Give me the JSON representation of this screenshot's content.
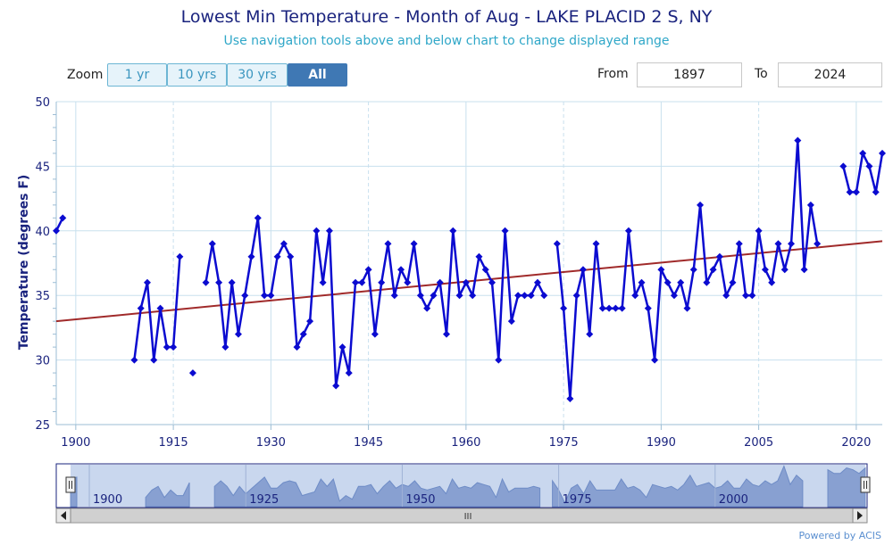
{
  "header": {
    "title": "Lowest Min Temperature - Month of Aug - LAKE PLACID 2 S, NY",
    "subtitle": "Use navigation tools above and below chart to change displayed range"
  },
  "zoom": {
    "label": "Zoom",
    "buttons": [
      "1 yr",
      "10 yrs",
      "30 yrs",
      "All"
    ],
    "active": "All"
  },
  "range": {
    "from_label": "From",
    "from_value": "1897",
    "to_label": "To",
    "to_value": "2024"
  },
  "footer": {
    "credit": "Powered by ACIS"
  },
  "navigator": {
    "tick_labels": [
      "1900",
      "1925",
      "1950",
      "1975",
      "2000"
    ],
    "scroll_grip": "III"
  },
  "colors": {
    "series": "#0b0bd0",
    "trend": "#a02a2a",
    "grid": "#c8e0ee",
    "axis_text": "#1a237e"
  },
  "chart_data": {
    "type": "line",
    "ylabel": "Temperature (degrees F)",
    "xlabel": "",
    "xlim": [
      1897,
      2024
    ],
    "ylim": [
      25,
      50
    ],
    "x_ticks": [
      1900,
      1915,
      1930,
      1945,
      1960,
      1975,
      1990,
      2005,
      2020
    ],
    "y_ticks": [
      25,
      30,
      35,
      40,
      45,
      50
    ],
    "grid": true,
    "series": [
      {
        "values": [
          [
            1897,
            40
          ],
          [
            1898,
            41
          ],
          [
            1899,
            null
          ],
          [
            1909,
            30
          ],
          [
            1910,
            34
          ],
          [
            1911,
            36
          ],
          [
            1912,
            30
          ],
          [
            1913,
            34
          ],
          [
            1914,
            31
          ],
          [
            1915,
            31
          ],
          [
            1916,
            38
          ],
          [
            1917,
            null
          ],
          [
            1918,
            29
          ],
          [
            1919,
            null
          ],
          [
            1920,
            36
          ],
          [
            1921,
            39
          ],
          [
            1922,
            36
          ],
          [
            1923,
            31
          ],
          [
            1924,
            36
          ],
          [
            1925,
            32
          ],
          [
            1926,
            35
          ],
          [
            1927,
            38
          ],
          [
            1928,
            41
          ],
          [
            1929,
            35
          ],
          [
            1930,
            35
          ],
          [
            1931,
            38
          ],
          [
            1932,
            39
          ],
          [
            1933,
            38
          ],
          [
            1934,
            31
          ],
          [
            1935,
            32
          ],
          [
            1936,
            33
          ],
          [
            1937,
            40
          ],
          [
            1938,
            36
          ],
          [
            1939,
            40
          ],
          [
            1940,
            28
          ],
          [
            1941,
            31
          ],
          [
            1942,
            29
          ],
          [
            1943,
            36
          ],
          [
            1944,
            36
          ],
          [
            1945,
            37
          ],
          [
            1946,
            32
          ],
          [
            1947,
            36
          ],
          [
            1948,
            39
          ],
          [
            1949,
            35
          ],
          [
            1950,
            37
          ],
          [
            1951,
            36
          ],
          [
            1952,
            39
          ],
          [
            1953,
            35
          ],
          [
            1954,
            34
          ],
          [
            1955,
            35
          ],
          [
            1956,
            36
          ],
          [
            1957,
            32
          ],
          [
            1958,
            40
          ],
          [
            1959,
            35
          ],
          [
            1960,
            36
          ],
          [
            1961,
            35
          ],
          [
            1962,
            38
          ],
          [
            1963,
            37
          ],
          [
            1964,
            36
          ],
          [
            1965,
            30
          ],
          [
            1966,
            40
          ],
          [
            1967,
            33
          ],
          [
            1968,
            35
          ],
          [
            1969,
            35
          ],
          [
            1970,
            35
          ],
          [
            1971,
            36
          ],
          [
            1972,
            35
          ],
          [
            1973,
            null
          ],
          [
            1974,
            39
          ],
          [
            1975,
            34
          ],
          [
            1976,
            27
          ],
          [
            1977,
            35
          ],
          [
            1978,
            37
          ],
          [
            1979,
            32
          ],
          [
            1980,
            39
          ],
          [
            1981,
            34
          ],
          [
            1982,
            34
          ],
          [
            1983,
            34
          ],
          [
            1984,
            34
          ],
          [
            1985,
            40
          ],
          [
            1986,
            35
          ],
          [
            1987,
            36
          ],
          [
            1988,
            34
          ],
          [
            1989,
            30
          ],
          [
            1990,
            37
          ],
          [
            1991,
            36
          ],
          [
            1992,
            35
          ],
          [
            1993,
            36
          ],
          [
            1994,
            34
          ],
          [
            1995,
            37
          ],
          [
            1996,
            42
          ],
          [
            1997,
            36
          ],
          [
            1998,
            37
          ],
          [
            1999,
            38
          ],
          [
            2000,
            35
          ],
          [
            2001,
            36
          ],
          [
            2002,
            39
          ],
          [
            2003,
            35
          ],
          [
            2004,
            35
          ],
          [
            2005,
            40
          ],
          [
            2006,
            37
          ],
          [
            2007,
            36
          ],
          [
            2008,
            39
          ],
          [
            2009,
            37
          ],
          [
            2010,
            39
          ],
          [
            2011,
            47
          ],
          [
            2012,
            37
          ],
          [
            2013,
            42
          ],
          [
            2014,
            39
          ],
          [
            2015,
            null
          ],
          [
            2018,
            45
          ],
          [
            2019,
            43
          ],
          [
            2020,
            43
          ],
          [
            2021,
            46
          ],
          [
            2022,
            45
          ],
          [
            2023,
            43
          ],
          [
            2024,
            46
          ]
        ]
      }
    ],
    "trend": {
      "start": [
        1897,
        33.0
      ],
      "end": [
        2024,
        39.2
      ]
    }
  }
}
